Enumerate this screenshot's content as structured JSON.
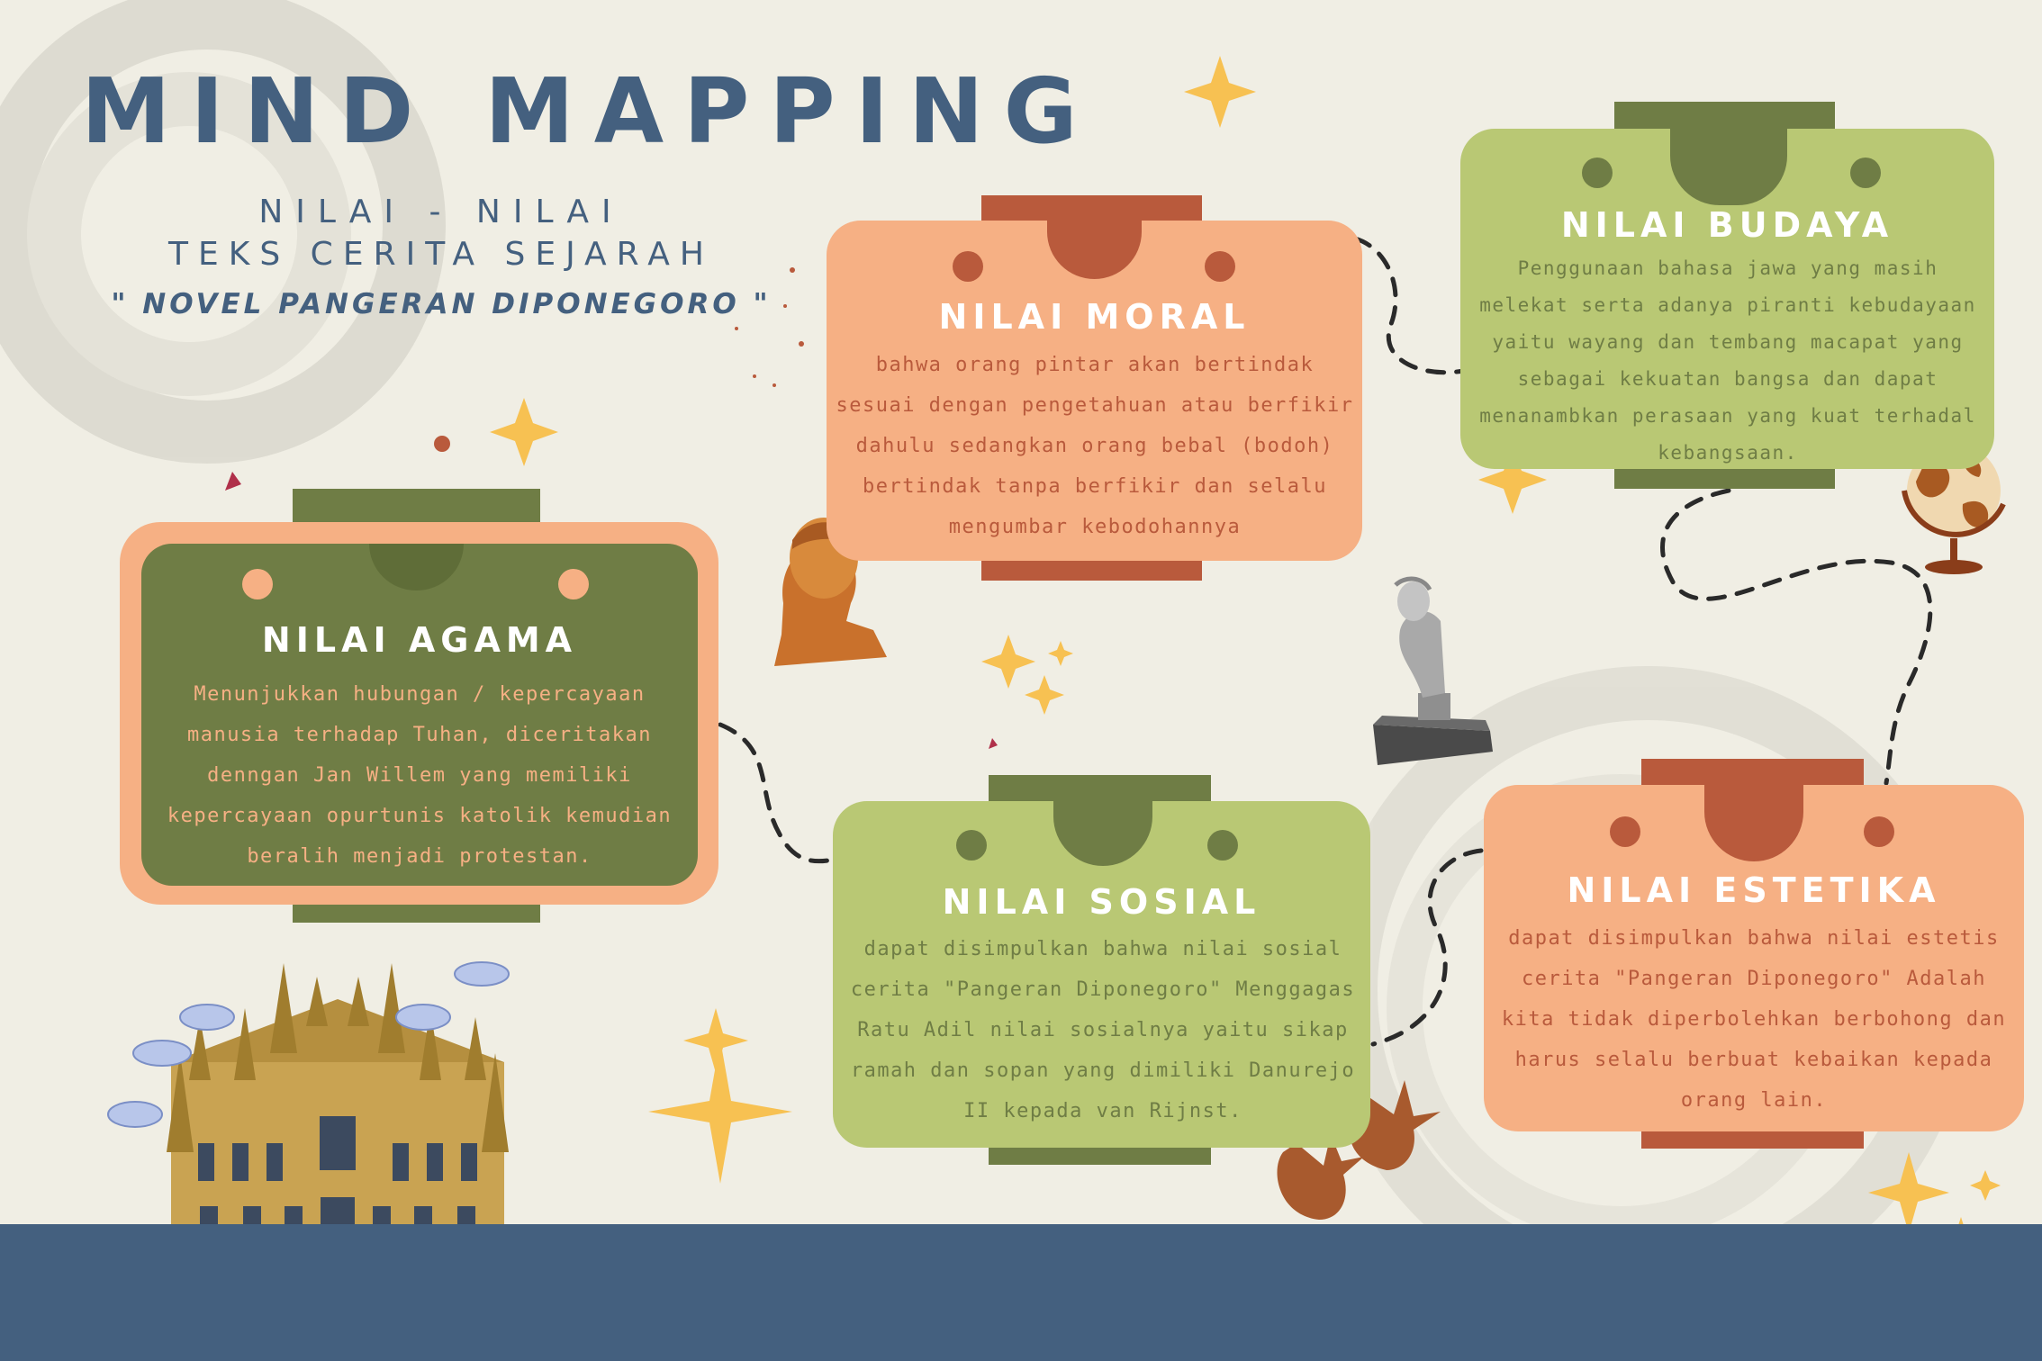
{
  "title": "MIND MAPPING",
  "subtitle": {
    "line1": "NILAI - NILAI",
    "line2": "TEKS CERITA SEJARAH",
    "line3": "\" NOVEL PANGERAN DIPONEGORO \""
  },
  "nodes": {
    "agama": {
      "title": "NILAI AGAMA",
      "body": "Menunjukkan hubungan / kepercayaan manusia terhadap Tuhan, diceritakan denngan Jan Willem yang memiliki kepercayaan opurtunis katolik kemudian beralih menjadi protestan."
    },
    "moral": {
      "title": "NILAI MORAL",
      "body": "bahwa orang pintar akan bertindak sesuai dengan pengetahuan atau berfikir dahulu sedangkan orang bebal (bodoh) bertindak tanpa berfikir dan selalu mengumbar kebodohannya"
    },
    "budaya": {
      "title": "NILAI BUDAYA",
      "body": "Penggunaan bahasa jawa yang masih melekat serta adanya piranti kebudayaan yaitu wayang dan tembang macapat yang sebagai kekuatan bangsa dan dapat menanambkan perasaan yang kuat terhadal kebangsaan."
    },
    "sosial": {
      "title": "NILAI SOSIAL",
      "body": "dapat disimpulkan bahwa nilai sosial cerita \"Pangeran Diponegoro\" Menggagas Ratu Adil nilai sosialnya yaitu sikap ramah dan sopan yang dimiliki Danurejo II kepada van Rijnst."
    },
    "estetika": {
      "title": "NILAI ESTETIKA",
      "body": "dapat disimpulkan bahwa nilai estetis cerita \"Pangeran Diponegoro\" Adalah kita tidak diperbolehkan berbohong dan harus selalu berbuat kebaikan kepada orang lain."
    }
  },
  "colors": {
    "background": "#f0eee4",
    "navy": "#44607f",
    "olive": "#6f7d45",
    "light_green": "#b9c874",
    "peach": "#f6b084",
    "rust": "#b95a3c"
  }
}
